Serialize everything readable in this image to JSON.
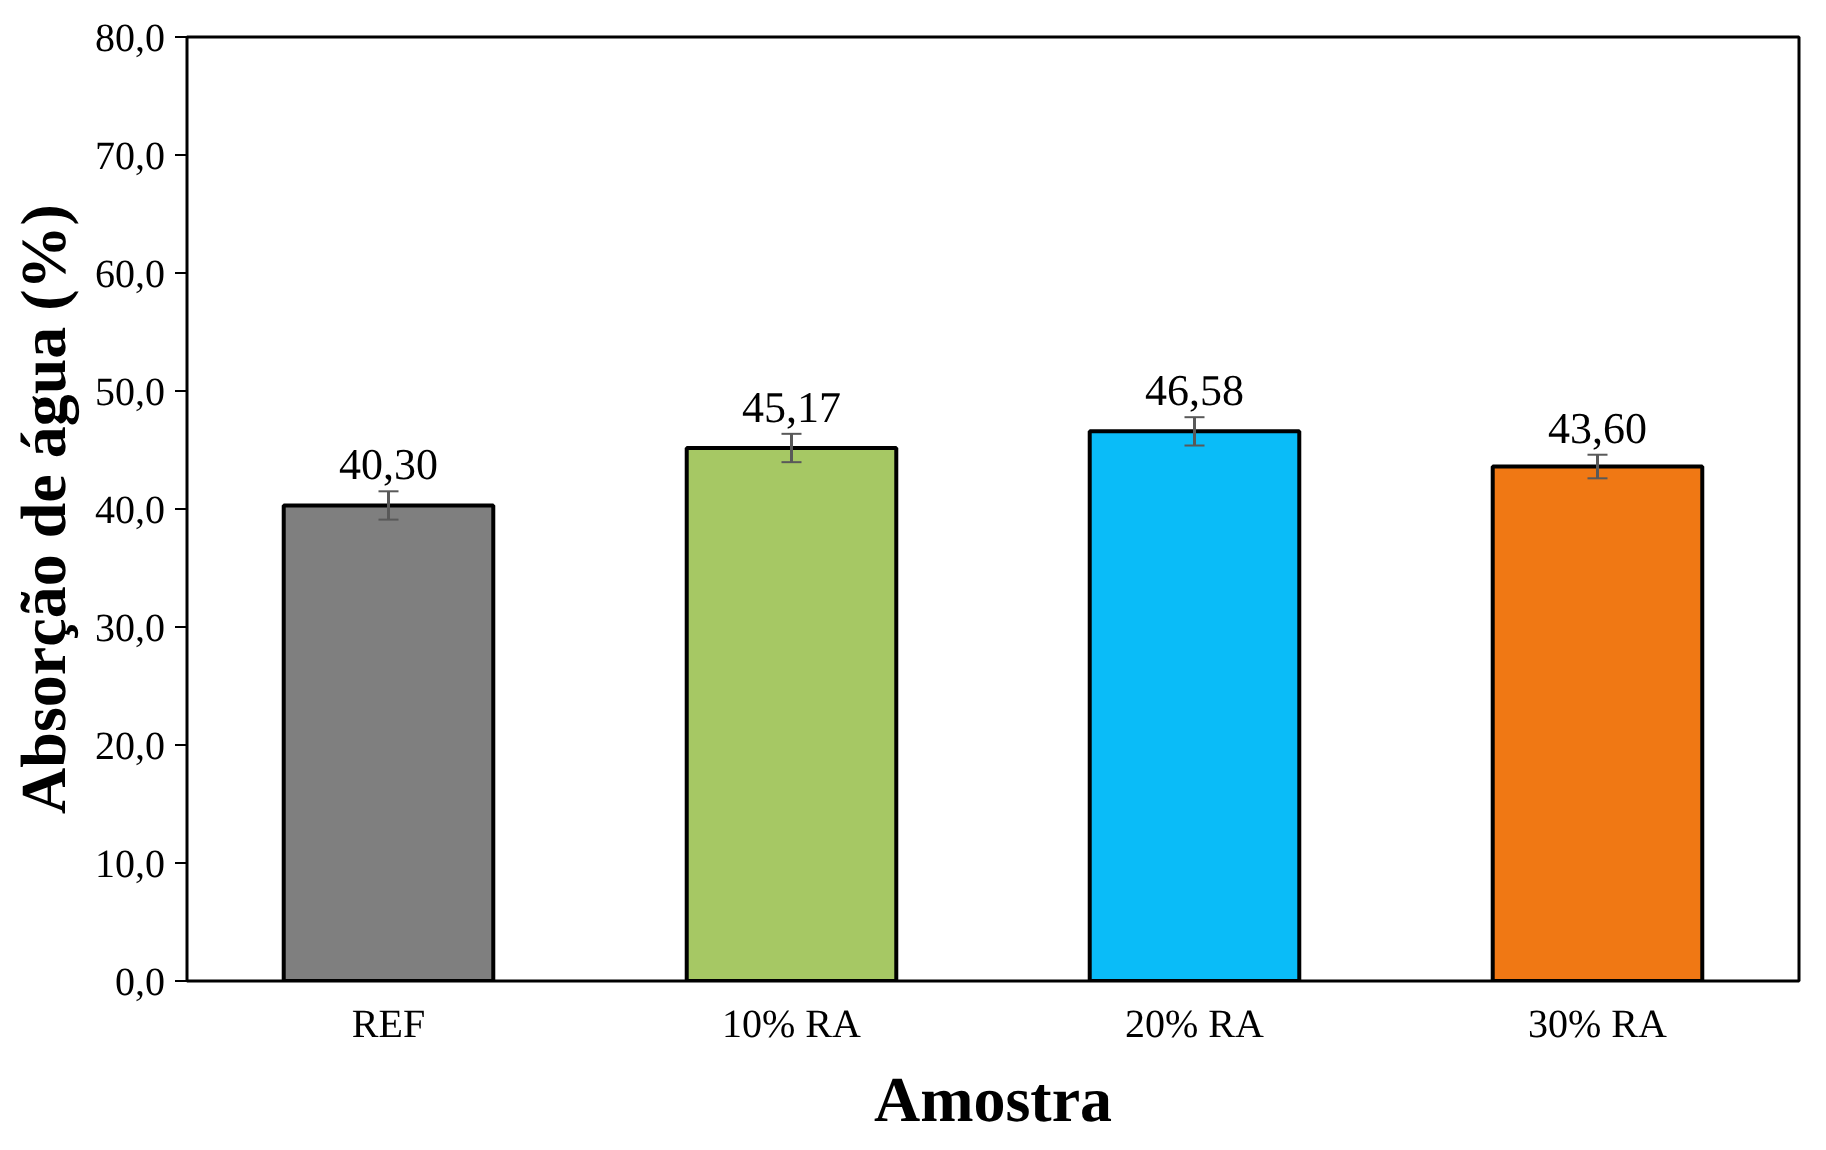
{
  "chart_data": {
    "type": "bar",
    "xlabel": "Amostra",
    "ylabel": "Absorção de água (%)",
    "categories": [
      "REF",
      "10% RA",
      "20% RA",
      "30% RA"
    ],
    "values": [
      40.3,
      45.17,
      46.58,
      43.6
    ],
    "colors": [
      "#7f7f7f",
      "#a6c864",
      "#0abcf8",
      "#f07814"
    ],
    "errors": [
      1.2,
      1.2,
      1.2,
      1.0
    ],
    "value_labels": [
      "40,30",
      "45,17",
      "46,58",
      "43,60"
    ],
    "ylim": [
      0,
      80
    ],
    "yticks": [
      {
        "value": 0,
        "label": "0,0"
      },
      {
        "value": 10,
        "label": "10,0"
      },
      {
        "value": 20,
        "label": "20,0"
      },
      {
        "value": 30,
        "label": "30,0"
      },
      {
        "value": 40,
        "label": "40,0"
      },
      {
        "value": 50,
        "label": "50,0"
      },
      {
        "value": 60,
        "label": "60,0"
      },
      {
        "value": 70,
        "label": "70,0"
      },
      {
        "value": 80,
        "label": "80,0"
      }
    ],
    "grid": false
  }
}
